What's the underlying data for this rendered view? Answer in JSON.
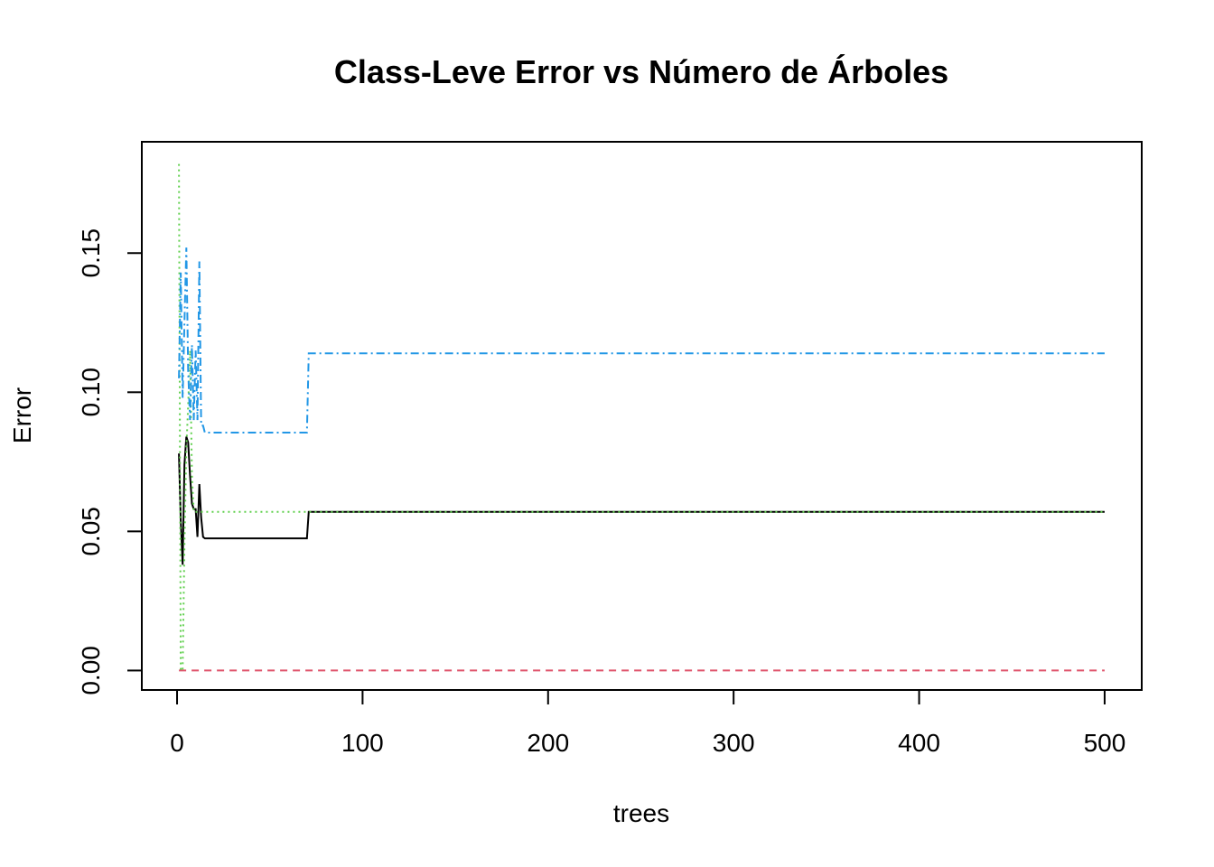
{
  "chart_data": {
    "type": "line",
    "title": "Class-Leve Error vs Número de Árboles",
    "xlabel": "trees",
    "ylabel": "Error",
    "xlim": [
      -19,
      520
    ],
    "ylim": [
      -0.007,
      0.19
    ],
    "xticks": [
      0,
      100,
      200,
      300,
      400,
      500
    ],
    "yticks": [
      0.0,
      0.05,
      0.1,
      0.15
    ],
    "xtick_labels": [
      "0",
      "100",
      "200",
      "300",
      "400",
      "500"
    ],
    "ytick_labels": [
      "0.00",
      "0.05",
      "0.10",
      "0.15"
    ],
    "grid": false,
    "legend": "none",
    "series": [
      {
        "color": "#000000",
        "dash": "",
        "x": [
          1,
          2,
          3,
          4,
          5,
          6,
          7,
          8,
          9,
          10,
          11,
          12,
          13,
          14,
          15,
          20,
          69,
          70,
          71,
          500
        ],
        "y": [
          0.078,
          0.054,
          0.038,
          0.074,
          0.084,
          0.082,
          0.07,
          0.06,
          0.058,
          0.058,
          0.048,
          0.067,
          0.055,
          0.048,
          0.0475,
          0.0475,
          0.0475,
          0.0475,
          0.057,
          0.057
        ]
      },
      {
        "color": "#DF536B",
        "dash": "8,6",
        "x": [
          1,
          500
        ],
        "y": [
          0.0,
          0.0
        ]
      },
      {
        "color": "#61D04F",
        "dash": "2,4",
        "x": [
          1,
          2,
          3,
          4,
          5,
          6,
          7,
          8,
          9,
          10,
          500
        ],
        "y": [
          0.182,
          0.0,
          0.0,
          0.045,
          0.08,
          0.095,
          0.115,
          0.07,
          0.057,
          0.057,
          0.057
        ]
      },
      {
        "color": "#2297E6",
        "dash": "9,4,2,4",
        "x": [
          1,
          2,
          3,
          4,
          5,
          6,
          7,
          8,
          9,
          10,
          11,
          12,
          13,
          14,
          15,
          69,
          70,
          71,
          500
        ],
        "y": [
          0.105,
          0.143,
          0.098,
          0.125,
          0.152,
          0.108,
          0.09,
          0.117,
          0.09,
          0.115,
          0.09,
          0.147,
          0.088,
          0.088,
          0.0855,
          0.0855,
          0.0855,
          0.114,
          0.114
        ]
      }
    ]
  }
}
